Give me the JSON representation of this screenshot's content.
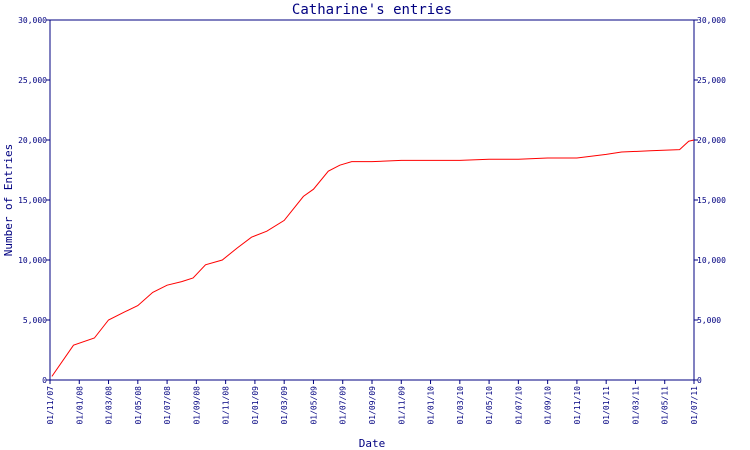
{
  "chart_data": {
    "type": "line",
    "title": "Catharine's entries",
    "xlabel": "Date",
    "ylabel": "Number of Entries",
    "ylim": [
      0,
      30000
    ],
    "y_ticks": [
      "0",
      "5,000",
      "10,000",
      "15,000",
      "20,000",
      "25,000",
      "30,000"
    ],
    "y_tick_values": [
      0,
      5000,
      10000,
      15000,
      20000,
      25000,
      30000
    ],
    "x_ticks": [
      "01/11/07",
      "01/01/08",
      "01/03/08",
      "01/05/08",
      "01/07/08",
      "01/09/08",
      "01/11/08",
      "01/01/09",
      "01/03/09",
      "01/05/09",
      "01/07/09",
      "01/09/09",
      "01/11/09",
      "01/01/10",
      "01/03/10",
      "01/05/10",
      "01/07/10",
      "01/09/10",
      "01/11/10",
      "01/01/11",
      "01/03/11",
      "01/05/11",
      "01/07/11"
    ],
    "grid": false,
    "series": [
      {
        "color": "#ff0000",
        "points": [
          [
            "2007-11-05",
            300
          ],
          [
            "2007-12-20",
            2900
          ],
          [
            "2008-02-01",
            3500
          ],
          [
            "2008-03-01",
            5000
          ],
          [
            "2008-04-05",
            5700
          ],
          [
            "2008-05-01",
            6200
          ],
          [
            "2008-06-01",
            7300
          ],
          [
            "2008-07-01",
            7900
          ],
          [
            "2008-08-01",
            8200
          ],
          [
            "2008-08-25",
            8500
          ],
          [
            "2008-09-20",
            9600
          ],
          [
            "2008-10-25",
            10000
          ],
          [
            "2008-11-25",
            11000
          ],
          [
            "2008-12-25",
            11900
          ],
          [
            "2009-01-25",
            12400
          ],
          [
            "2009-03-01",
            13300
          ],
          [
            "2009-04-10",
            15300
          ],
          [
            "2009-05-01",
            15900
          ],
          [
            "2009-06-01",
            17400
          ],
          [
            "2009-06-25",
            17900
          ],
          [
            "2009-07-20",
            18200
          ],
          [
            "2009-09-01",
            18200
          ],
          [
            "2009-11-01",
            18300
          ],
          [
            "2010-01-01",
            18300
          ],
          [
            "2010-03-01",
            18300
          ],
          [
            "2010-05-01",
            18400
          ],
          [
            "2010-07-01",
            18400
          ],
          [
            "2010-09-01",
            18500
          ],
          [
            "2010-11-01",
            18500
          ],
          [
            "2011-01-01",
            18800
          ],
          [
            "2011-02-01",
            19000
          ],
          [
            "2011-04-01",
            19100
          ],
          [
            "2011-06-01",
            19200
          ],
          [
            "2011-06-20",
            19900
          ],
          [
            "2011-07-01",
            20000
          ]
        ]
      }
    ]
  }
}
